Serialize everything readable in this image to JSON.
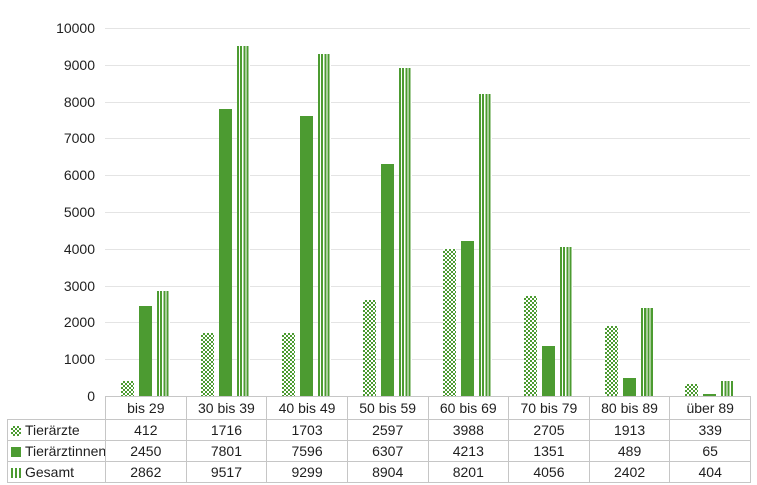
{
  "colors": {
    "series_green": "#4c9b31",
    "gridline": "#e4e4e4",
    "table_border": "#c6c6c6",
    "text": "#1f1f1f"
  },
  "chart_data": {
    "type": "bar",
    "title": "",
    "xlabel": "",
    "ylabel": "",
    "ylim": [
      0,
      10000
    ],
    "ytick_step": 1000,
    "y_ticks": [
      0,
      1000,
      2000,
      3000,
      4000,
      5000,
      6000,
      7000,
      8000,
      9000,
      10000
    ],
    "grid": true,
    "legend_position": "table-left",
    "categories": [
      "bis 29",
      "30 bis 39",
      "40 bis 49",
      "50 bis 59",
      "60 bis 69",
      "70 bis 79",
      "80 bis 89",
      "über 89"
    ],
    "series": [
      {
        "name": "Tierärzte",
        "pattern": "checker",
        "values": [
          412,
          1716,
          1703,
          2597,
          3988,
          2705,
          1913,
          339
        ]
      },
      {
        "name": "Tierärztinnen",
        "pattern": "solid",
        "values": [
          2450,
          7801,
          7596,
          6307,
          4213,
          1351,
          489,
          65
        ]
      },
      {
        "name": "Gesamt",
        "pattern": "stripes",
        "values": [
          2862,
          9517,
          9299,
          8904,
          8201,
          4056,
          2402,
          404
        ]
      }
    ]
  }
}
